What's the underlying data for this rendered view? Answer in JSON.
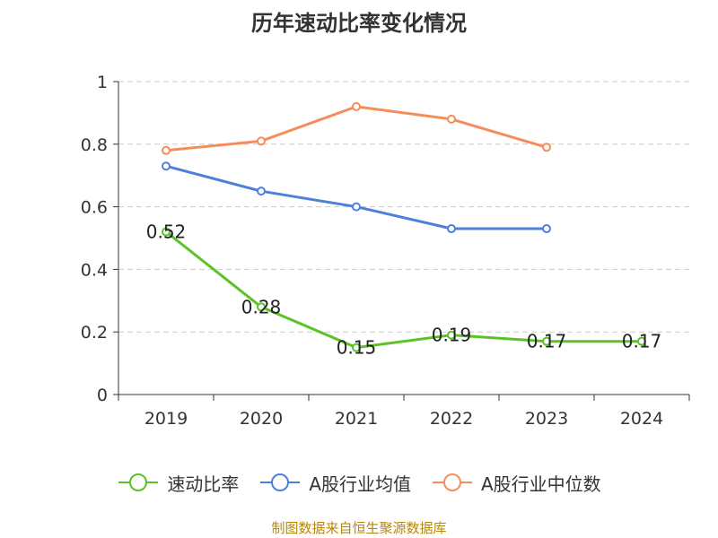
{
  "title": "历年速动比率变化情况",
  "source_note": "制图数据来自恒生聚源数据库",
  "chart_data": {
    "type": "line",
    "title": "历年速动比率变化情况",
    "categories": [
      "2019",
      "2020",
      "2021",
      "2022",
      "2023",
      "2024"
    ],
    "ylim": [
      0,
      1
    ],
    "yticks": [
      "0",
      "0.2",
      "0.4",
      "0.6",
      "0.8",
      "1"
    ],
    "grid": true,
    "legend_position": "bottom",
    "series": [
      {
        "name": "速动比率",
        "color": "#5cc225",
        "values": [
          0.52,
          0.28,
          0.15,
          0.19,
          0.17,
          0.17
        ],
        "labels": [
          "0.52",
          "0.28",
          "0.15",
          "0.19",
          "0.17",
          "0.17"
        ]
      },
      {
        "name": "A股行业均值",
        "color": "#4d80db",
        "values": [
          0.73,
          0.65,
          0.6,
          0.53,
          0.53,
          null
        ]
      },
      {
        "name": "A股行业中位数",
        "color": "#f58d5a",
        "values": [
          0.78,
          0.81,
          0.92,
          0.88,
          0.79,
          null
        ]
      }
    ]
  }
}
